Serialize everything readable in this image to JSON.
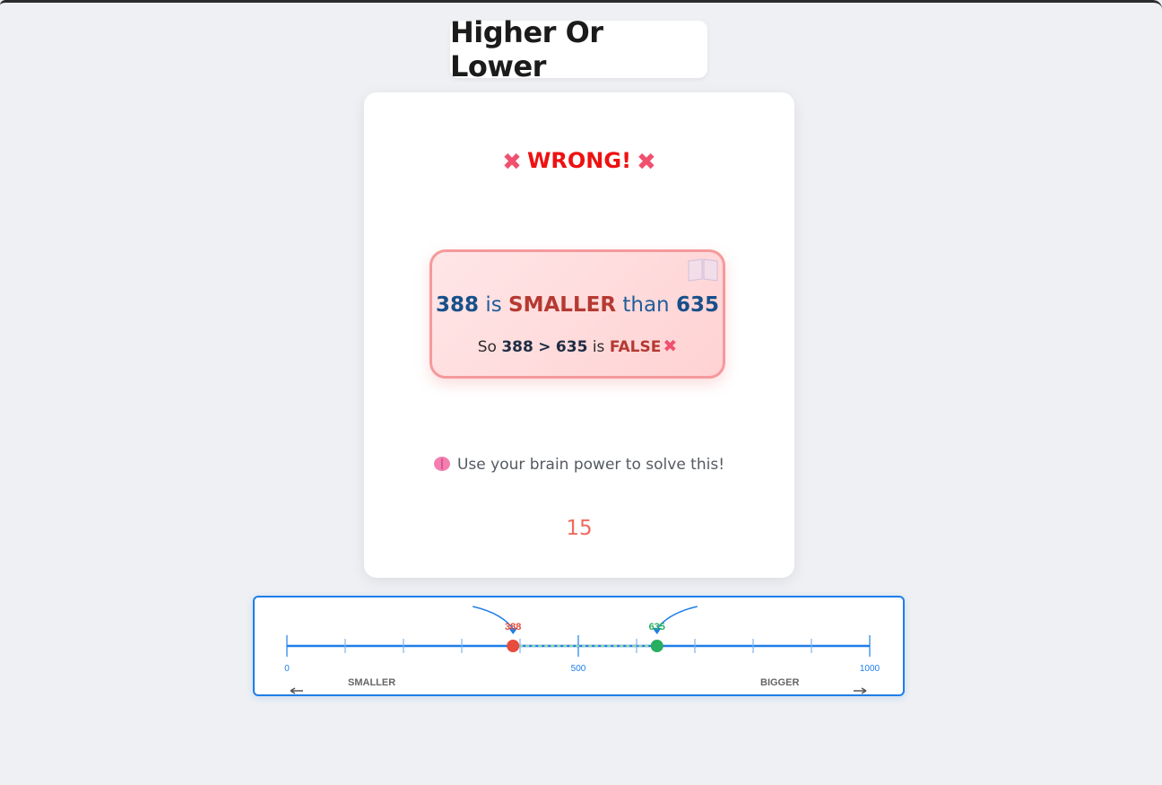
{
  "header": {
    "title": "Higher Or Lower"
  },
  "result": {
    "text": "WRONG!",
    "icon": "cross-mark-icon",
    "color": "#ee1111"
  },
  "explanation": {
    "left_number": "388",
    "is_word": "is",
    "relation": "SMALLER",
    "than_word": "than",
    "right_number": "635",
    "so_word": "So",
    "operator": ">",
    "is_word2": "is",
    "verdict": "FALSE",
    "decor_icon": "open-book-icon"
  },
  "hint": {
    "icon": "brain-icon",
    "text": "Use your brain power to solve this!"
  },
  "timer": {
    "value": "15"
  },
  "number_line": {
    "min": 0,
    "max": 1000,
    "tick_step": 100,
    "labels": [
      "0",
      "500",
      "1000"
    ],
    "label_values": [
      0,
      500,
      1000
    ],
    "markers": [
      {
        "value": 388,
        "label": "388",
        "color": "#e74c3c"
      },
      {
        "value": 635,
        "label": "635",
        "color": "#27ae60"
      }
    ],
    "left_caption": "SMALLER",
    "right_caption": "BIGGER",
    "line_color": "#1e7ee8"
  }
}
